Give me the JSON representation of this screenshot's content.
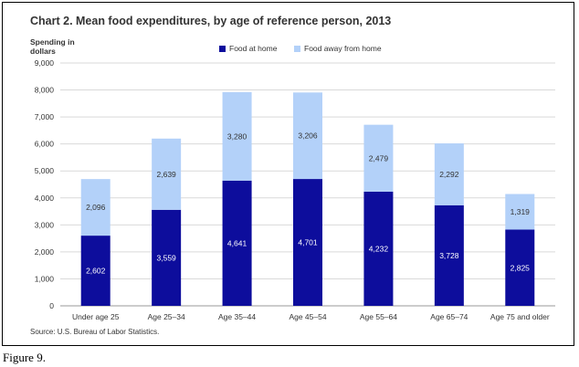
{
  "chart_data": {
    "type": "bar",
    "stacked": true,
    "title": "Chart 2. Mean food expenditures, by age of reference person, 2013",
    "ylabel": "Spending in dollars",
    "xlabel": "",
    "ylim": [
      0,
      9000
    ],
    "yticks": [
      0,
      1000,
      2000,
      3000,
      4000,
      5000,
      6000,
      7000,
      8000,
      9000
    ],
    "ytick_labels": [
      "0",
      "1,000",
      "2,000",
      "3,000",
      "4,000",
      "5,000",
      "6,000",
      "7,000",
      "8,000",
      "9,000"
    ],
    "grid": true,
    "legend_position": "top",
    "categories": [
      "Under age 25",
      "Age 25–34",
      "Age 35–44",
      "Age 45–54",
      "Age 55–64",
      "Age 65–74",
      "Age 75 and older"
    ],
    "series": [
      {
        "name": "Food at home",
        "color": "#0d0d9c",
        "label_color": "#ffffff",
        "values": [
          2602,
          3559,
          4641,
          4701,
          4232,
          3728,
          2825
        ],
        "labels": [
          "2,602",
          "3,559",
          "4,641",
          "4,701",
          "4,232",
          "3,728",
          "2,825"
        ]
      },
      {
        "name": "Food away from home",
        "color": "#b3d1f9",
        "label_color": "#333333",
        "values": [
          2096,
          2639,
          3280,
          3206,
          2479,
          2292,
          1319
        ],
        "labels": [
          "2,096",
          "2,639",
          "3,280",
          "3,206",
          "2,479",
          "2,292",
          "1,319"
        ]
      }
    ],
    "source": "Source: U.S. Bureau of Labor Statistics."
  },
  "caption": "Figure 9."
}
